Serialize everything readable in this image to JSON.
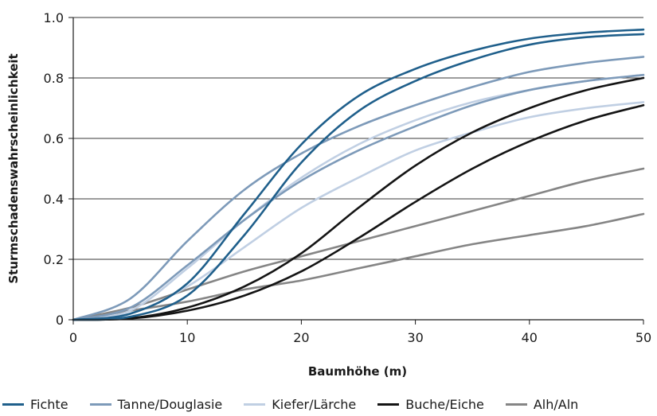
{
  "chart_data": {
    "type": "line",
    "title": "",
    "xlabel": "Baumhöhe (m)",
    "ylabel": "Sturmschadenswahrscheinlichkeit",
    "xlim": [
      0,
      50
    ],
    "ylim": [
      0,
      1.0
    ],
    "xticks": [
      "0",
      "10",
      "20",
      "30",
      "40",
      "50"
    ],
    "yticks": [
      "0",
      "0.2",
      "0.4",
      "0.6",
      "0.8",
      "1.0"
    ],
    "grid": "horizontal",
    "legend_position": "bottom",
    "x": [
      0,
      5,
      10,
      15,
      20,
      25,
      30,
      35,
      40,
      45,
      50
    ],
    "series": [
      {
        "name": "Fichte",
        "color": "#1f5f8b",
        "values": [
          0,
          0.02,
          0.12,
          0.35,
          0.58,
          0.74,
          0.83,
          0.89,
          0.93,
          0.95,
          0.96
        ]
      },
      {
        "name": "Fichte",
        "color": "#1f5f8b",
        "values": [
          0,
          0.01,
          0.08,
          0.28,
          0.52,
          0.69,
          0.79,
          0.86,
          0.91,
          0.935,
          0.945
        ]
      },
      {
        "name": "Tanne/Douglasie",
        "color": "#7d9ab9",
        "values": [
          0,
          0.07,
          0.26,
          0.43,
          0.55,
          0.64,
          0.71,
          0.77,
          0.82,
          0.85,
          0.87
        ]
      },
      {
        "name": "Tanne/Douglasie",
        "color": "#7d9ab9",
        "values": [
          0,
          0.04,
          0.18,
          0.33,
          0.46,
          0.56,
          0.64,
          0.71,
          0.76,
          0.79,
          0.81
        ]
      },
      {
        "name": "Kiefer/Lärche",
        "color": "#c0cfe3",
        "values": [
          0,
          0.03,
          0.17,
          0.33,
          0.47,
          0.58,
          0.66,
          0.72,
          0.76,
          0.79,
          0.81
        ]
      },
      {
        "name": "Kiefer/Lärche",
        "color": "#c0cfe3",
        "values": [
          0,
          0.02,
          0.11,
          0.24,
          0.37,
          0.47,
          0.56,
          0.62,
          0.67,
          0.7,
          0.72
        ]
      },
      {
        "name": "Buche/Eiche",
        "color": "#141414",
        "values": [
          0,
          0.005,
          0.04,
          0.11,
          0.22,
          0.37,
          0.51,
          0.62,
          0.7,
          0.76,
          0.8
        ]
      },
      {
        "name": "Buche/Eiche",
        "color": "#141414",
        "values": [
          0,
          0.004,
          0.03,
          0.08,
          0.16,
          0.27,
          0.39,
          0.5,
          0.59,
          0.66,
          0.71
        ]
      },
      {
        "name": "Alh/Aln",
        "color": "#858585",
        "values": [
          0,
          0.04,
          0.1,
          0.16,
          0.21,
          0.26,
          0.31,
          0.36,
          0.41,
          0.46,
          0.5
        ]
      },
      {
        "name": "Alh/Aln",
        "color": "#858585",
        "values": [
          0,
          0.03,
          0.06,
          0.1,
          0.13,
          0.17,
          0.21,
          0.25,
          0.28,
          0.31,
          0.35
        ]
      }
    ],
    "legend": [
      {
        "label": "Fichte",
        "color": "#1f5f8b"
      },
      {
        "label": "Tanne/Douglasie",
        "color": "#7d9ab9"
      },
      {
        "label": "Kiefer/Lärche",
        "color": "#c0cfe3"
      },
      {
        "label": "Buche/Eiche",
        "color": "#141414"
      },
      {
        "label": "Alh/Aln",
        "color": "#858585"
      }
    ]
  }
}
